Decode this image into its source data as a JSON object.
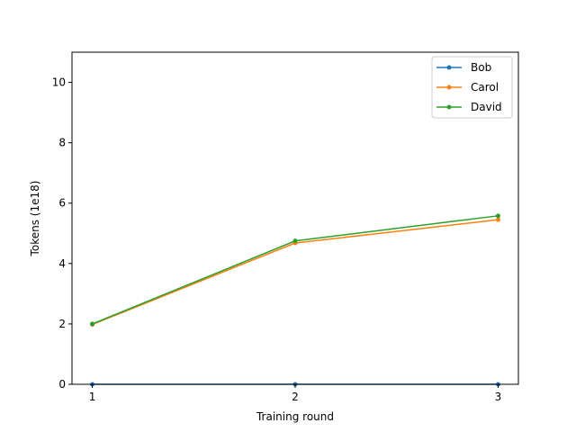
{
  "chart_data": {
    "type": "line",
    "title": "",
    "xlabel": "Training round",
    "ylabel": "Tokens (1e18)",
    "x": [
      1,
      2,
      3
    ],
    "x_tick_labels": [
      "1",
      "2",
      "3"
    ],
    "xlim": [
      0.9,
      3.1
    ],
    "ylim": [
      0,
      11
    ],
    "y_ticks": [
      0,
      2,
      4,
      6,
      8,
      10
    ],
    "y_tick_labels": [
      "0",
      "2",
      "4",
      "6",
      "8",
      "10"
    ],
    "grid": false,
    "legend_position": "top-right",
    "series": [
      {
        "name": "Bob",
        "color": "#1f77b4",
        "values": [
          0,
          0,
          0
        ]
      },
      {
        "name": "Carol",
        "color": "#ff7f0e",
        "values": [
          1.98,
          4.68,
          5.45
        ]
      },
      {
        "name": "David",
        "color": "#2ca02c",
        "values": [
          2.0,
          4.75,
          5.58
        ]
      }
    ]
  }
}
